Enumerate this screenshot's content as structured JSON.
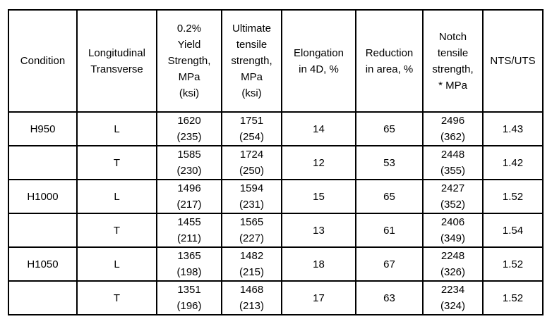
{
  "table": {
    "headers": [
      "Condition",
      "Longitudinal\nTransverse",
      "0.2%\nYield\nStrength,\nMPa\n(ksi)",
      "Ultimate\ntensile\nstrength,\nMPa\n(ksi)",
      "Elongation\nin 4D, %",
      "Reduction\nin area, %",
      "Notch\ntensile\nstrength,\n* MPa",
      "NTS/UTS"
    ],
    "rows": [
      {
        "condition": "H950",
        "orientation": "L",
        "yield_strength": "1620\n(235)",
        "ultimate_tensile": "1751\n(254)",
        "elongation": "14",
        "reduction_area": "65",
        "notch_tensile": "2496\n(362)",
        "nts_uts": "1.43"
      },
      {
        "condition": "",
        "orientation": "T",
        "yield_strength": "1585\n(230)",
        "ultimate_tensile": "1724\n(250)",
        "elongation": "12",
        "reduction_area": "53",
        "notch_tensile": "2448\n(355)",
        "nts_uts": "1.42"
      },
      {
        "condition": "H1000",
        "orientation": "L",
        "yield_strength": "1496\n(217)",
        "ultimate_tensile": "1594\n(231)",
        "elongation": "15",
        "reduction_area": "65",
        "notch_tensile": "2427\n(352)",
        "nts_uts": "1.52"
      },
      {
        "condition": "",
        "orientation": "T",
        "yield_strength": "1455\n(211)",
        "ultimate_tensile": "1565\n(227)",
        "elongation": "13",
        "reduction_area": "61",
        "notch_tensile": "2406\n(349)",
        "nts_uts": "1.54"
      },
      {
        "condition": "H1050",
        "orientation": "L",
        "yield_strength": "1365\n(198)",
        "ultimate_tensile": "1482\n(215)",
        "elongation": "18",
        "reduction_area": "67",
        "notch_tensile": "2248\n(326)",
        "nts_uts": "1.52"
      },
      {
        "condition": "",
        "orientation": "T",
        "yield_strength": "1351\n(196)",
        "ultimate_tensile": "1468\n(213)",
        "elongation": "17",
        "reduction_area": "63",
        "notch_tensile": "2234\n(324)",
        "nts_uts": "1.52"
      }
    ]
  }
}
